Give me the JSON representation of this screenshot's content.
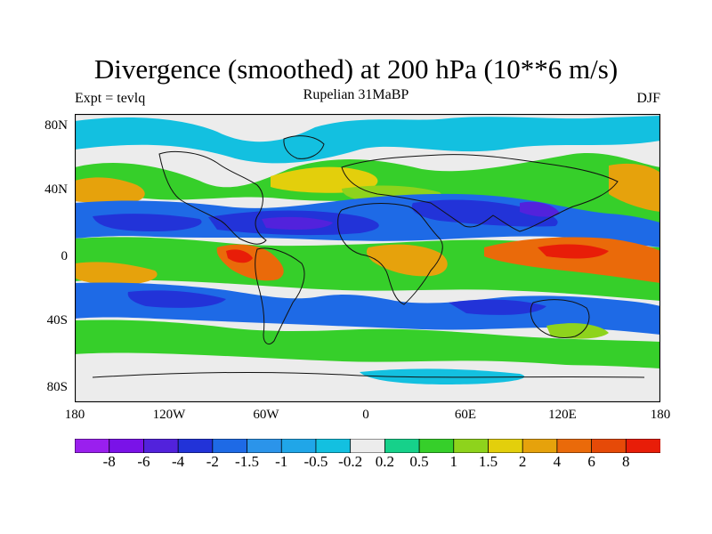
{
  "title": "Divergence (smoothed) at 200 hPa (10**6 m/s)",
  "subtitle": "Rupelian  31MaBP",
  "expt": "Expt = tevlq",
  "season": "DJF",
  "lat_labels": [
    "80N",
    "40N",
    "0",
    "40S",
    "80S"
  ],
  "lon_labels": [
    "180",
    "120W",
    "60W",
    "0",
    "60E",
    "120E",
    "180"
  ],
  "colorbar": {
    "labels": [
      "-8",
      "-6",
      "-4",
      "-2",
      "-1.5",
      "-1",
      "-0.5",
      "-0.2",
      "0.2",
      "0.5",
      "1",
      "1.5",
      "2",
      "4",
      "6",
      "8"
    ],
    "colors": [
      "#9a1fee",
      "#7a12e8",
      "#5222dc",
      "#2233d8",
      "#1e6ae6",
      "#2b94ea",
      "#20a6e8",
      "#13c0e0",
      "#ececec",
      "#16d18a",
      "#36cf2a",
      "#8ed31c",
      "#e3cf0c",
      "#e6a20c",
      "#ea6a0a",
      "#e64a08",
      "#e81d08"
    ]
  },
  "field_colors": {
    "neutral": "#ececec",
    "weak_pos": "#16d18a",
    "pos1": "#36cf2a",
    "pos15": "#8ed31c",
    "pos2": "#e3cf0c",
    "pos4": "#e6a20c",
    "pos6": "#ea6a0a",
    "pos8": "#e81d08",
    "weak_neg": "#13c0e0",
    "neg1": "#2b94ea",
    "neg2": "#1e6ae6",
    "neg4": "#2233d8",
    "neg6": "#5222dc",
    "neg8": "#7a12e8"
  }
}
